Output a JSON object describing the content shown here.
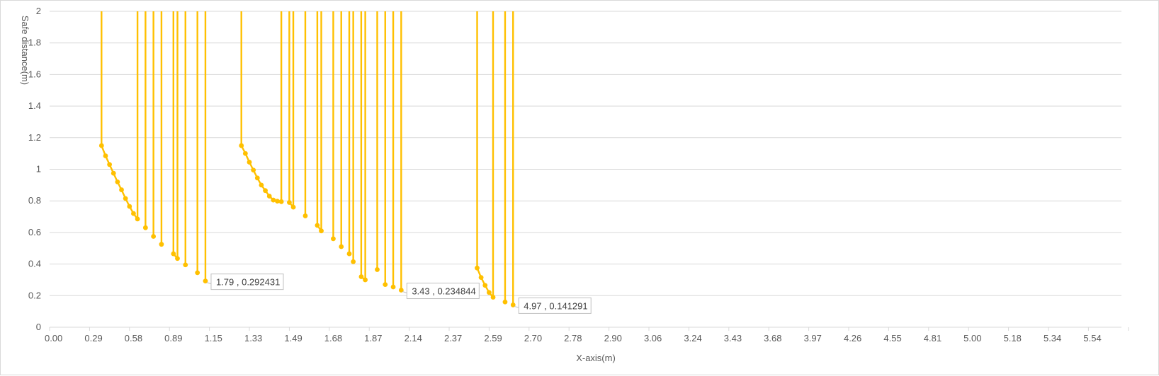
{
  "chart_data": {
    "type": "line",
    "title": "",
    "xlabel": "X-axis(m)",
    "ylabel": "Safe distance(m)",
    "ylim": [
      0,
      2
    ],
    "y_ticks": [
      "0",
      "0.2",
      "0.4",
      "0.6",
      "0.8",
      "1",
      "1.2",
      "1.4",
      "1.6",
      "1.8",
      "2"
    ],
    "x_tick_labels": [
      "0.00",
      "0.29",
      "0.58",
      "0.89",
      "1.15",
      "1.33",
      "1.49",
      "1.68",
      "1.87",
      "2.14",
      "2.37",
      "2.59",
      "2.70",
      "2.78",
      "2.90",
      "3.06",
      "3.24",
      "3.43",
      "3.68",
      "3.97",
      "4.26",
      "4.55",
      "4.81",
      "5.00",
      "5.18",
      "5.34",
      "5.54"
    ],
    "grid": true,
    "legend": "none",
    "series": [
      {
        "color": "#FFC000",
        "segments": [
          [
            {
              "c": 2.6,
              "y": 2
            },
            {
              "c": 2.6,
              "y": 1.15
            },
            {
              "c": 2.8,
              "y": 1.085
            },
            {
              "c": 3.0,
              "y": 1.03
            },
            {
              "c": 3.2,
              "y": 0.975
            },
            {
              "c": 3.4,
              "y": 0.92
            },
            {
              "c": 3.6,
              "y": 0.87
            },
            {
              "c": 3.8,
              "y": 0.815
            },
            {
              "c": 4.0,
              "y": 0.765
            },
            {
              "c": 4.2,
              "y": 0.72
            },
            {
              "c": 4.4,
              "y": 0.685
            },
            {
              "c": 4.4,
              "y": 2
            }
          ],
          [
            {
              "c": 9.6,
              "y": 2
            },
            {
              "c": 9.6,
              "y": 1.15
            },
            {
              "c": 9.8,
              "y": 1.1
            },
            {
              "c": 10.0,
              "y": 1.045
            },
            {
              "c": 10.2,
              "y": 0.995
            },
            {
              "c": 10.4,
              "y": 0.945
            },
            {
              "c": 10.6,
              "y": 0.9
            },
            {
              "c": 10.8,
              "y": 0.865
            },
            {
              "c": 11.0,
              "y": 0.83
            },
            {
              "c": 11.2,
              "y": 0.805
            },
            {
              "c": 11.4,
              "y": 0.798
            },
            {
              "c": 11.6,
              "y": 0.795
            },
            {
              "c": 11.6,
              "y": 2
            }
          ],
          [
            {
              "c": 12.0,
              "y": 2
            },
            {
              "c": 12.0,
              "y": 0.79
            },
            {
              "c": 12.2,
              "y": 0.76
            },
            {
              "c": 12.2,
              "y": 2
            }
          ],
          [
            {
              "c": 13.4,
              "y": 2
            },
            {
              "c": 13.4,
              "y": 0.645
            },
            {
              "c": 13.6,
              "y": 0.61
            },
            {
              "c": 13.6,
              "y": 2
            }
          ],
          [
            {
              "c": 15.6,
              "y": 2
            },
            {
              "c": 15.6,
              "y": 0.32
            },
            {
              "c": 15.8,
              "y": 0.3
            },
            {
              "c": 15.8,
              "y": 2
            }
          ],
          [
            {
              "c": 21.4,
              "y": 2
            },
            {
              "c": 21.4,
              "y": 0.375
            },
            {
              "c": 21.6,
              "y": 0.315
            },
            {
              "c": 21.8,
              "y": 0.265
            },
            {
              "c": 22.0,
              "y": 0.22
            },
            {
              "c": 22.2,
              "y": 0.19
            },
            {
              "c": 22.2,
              "y": 2
            }
          ],
          [
            {
              "c": 6.2,
              "y": 2
            },
            {
              "c": 6.2,
              "y": 0.465
            },
            {
              "c": 6.4,
              "y": 0.435
            },
            {
              "c": 6.4,
              "y": 2
            }
          ]
        ],
        "spikes": [
          {
            "c": 4.8,
            "y": 0.63
          },
          {
            "c": 5.2,
            "y": 0.575
          },
          {
            "c": 5.6,
            "y": 0.525
          },
          {
            "c": 6.8,
            "y": 0.395
          },
          {
            "c": 7.4,
            "y": 0.345
          },
          {
            "c": 7.8,
            "y": 0.292431
          },
          {
            "c": 12.8,
            "y": 0.705
          },
          {
            "c": 14.2,
            "y": 0.56
          },
          {
            "c": 14.6,
            "y": 0.51
          },
          {
            "c": 15.0,
            "y": 0.465
          },
          {
            "c": 15.2,
            "y": 0.415
          },
          {
            "c": 16.4,
            "y": 0.365
          },
          {
            "c": 16.8,
            "y": 0.27
          },
          {
            "c": 17.2,
            "y": 0.255
          },
          {
            "c": 17.6,
            "y": 0.234844
          },
          {
            "c": 22.8,
            "y": 0.16
          },
          {
            "c": 23.2,
            "y": 0.141291
          }
        ]
      }
    ],
    "annotations": [
      {
        "text": "1.79 , 0.292431",
        "c": 7.8,
        "y": 0.292431
      },
      {
        "text": "3.43 , 0.234844",
        "c": 17.6,
        "y": 0.234844
      },
      {
        "text": "4.97 , 0.141291",
        "c": 23.2,
        "y": 0.141291
      }
    ]
  }
}
